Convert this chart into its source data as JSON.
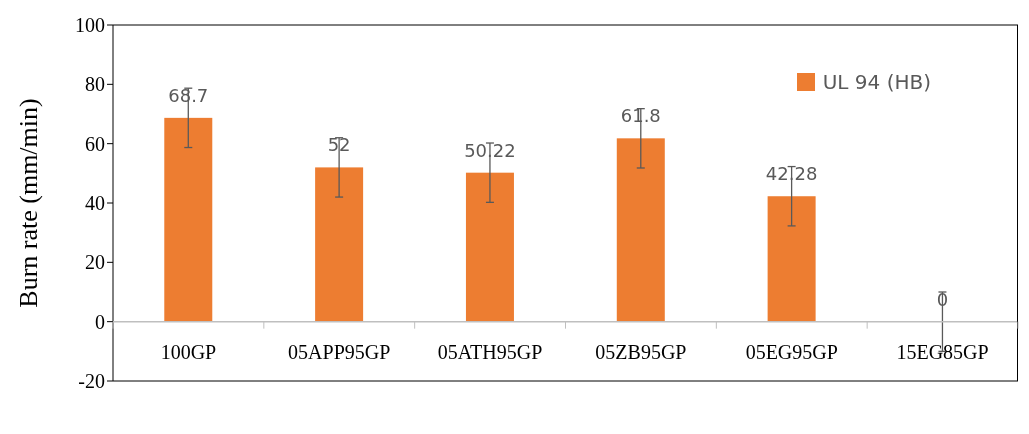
{
  "chart_data": {
    "type": "bar",
    "ylabel": "Burn rate  (mm/min)",
    "categories": [
      "100GP",
      "05APP95GP",
      "05ATH95GP",
      "05ZB95GP",
      "05EG95GP",
      "15EG85GP"
    ],
    "series": [
      {
        "name": "UL 94 (HB)",
        "color": "#ed7d31",
        "values": [
          68.7,
          52,
          50.22,
          61.8,
          42.28,
          0
        ],
        "errors": [
          10,
          10,
          10,
          10,
          10,
          10
        ]
      }
    ],
    "ref_lines": [
      {
        "axis": "y",
        "value": 0,
        "color": "#bfbfbf"
      }
    ],
    "ylim": [
      -20,
      100
    ],
    "yticks": [
      -20,
      0,
      20,
      40,
      60,
      80,
      100
    ],
    "grid": false,
    "legend": "top right",
    "data_labels": true
  }
}
